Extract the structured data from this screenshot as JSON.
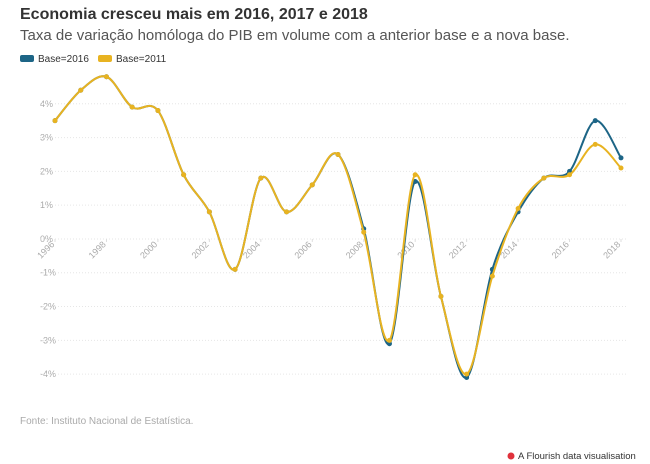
{
  "chart_data": {
    "type": "line",
    "title": "Economia cresceu mais em 2016, 2017 e 2018",
    "subtitle": "Taxa de variação homóloga do PIB em volume com a anterior base e a nova base.",
    "source": "Fonte: Instituto Nacional de Estatística.",
    "credit": "A Flourish data visualisation",
    "x": [
      1996,
      1997,
      1998,
      1999,
      2000,
      2001,
      2002,
      2003,
      2004,
      2005,
      2006,
      2007,
      2008,
      2009,
      2010,
      2011,
      2012,
      2013,
      2014,
      2015,
      2016,
      2017,
      2018
    ],
    "series": [
      {
        "name": "Base=2016",
        "color": "#1d6586",
        "values": [
          3.5,
          4.4,
          4.8,
          3.9,
          3.8,
          1.9,
          0.8,
          -0.9,
          1.8,
          0.8,
          1.6,
          2.5,
          0.3,
          -3.1,
          1.7,
          -1.7,
          -4.1,
          -0.9,
          0.8,
          1.8,
          2.0,
          3.5,
          2.4
        ]
      },
      {
        "name": "Base=2011",
        "color": "#e8b321",
        "values": [
          3.5,
          4.4,
          4.8,
          3.9,
          3.8,
          1.9,
          0.8,
          -0.9,
          1.8,
          0.8,
          1.6,
          2.5,
          0.2,
          -3.0,
          1.9,
          -1.7,
          -4.0,
          -1.1,
          0.9,
          1.8,
          1.9,
          2.8,
          2.1
        ]
      }
    ],
    "xlim": [
      1996,
      2018
    ],
    "xticks": [
      1996,
      1998,
      2000,
      2002,
      2004,
      2006,
      2008,
      2010,
      2012,
      2014,
      2016,
      2018
    ],
    "ylim": [
      -4.5,
      5
    ],
    "yticks": [
      {
        "value": 4,
        "label": "4%"
      },
      {
        "value": 3,
        "label": "3%"
      },
      {
        "value": 2,
        "label": "2%"
      },
      {
        "value": 1,
        "label": "1%"
      },
      {
        "value": 0,
        "label": "0%"
      },
      {
        "value": -1,
        "label": "-1%"
      },
      {
        "value": -2,
        "label": "-2%"
      },
      {
        "value": -3,
        "label": "-3%"
      },
      {
        "value": -4,
        "label": "-4%"
      }
    ],
    "grid": true
  }
}
